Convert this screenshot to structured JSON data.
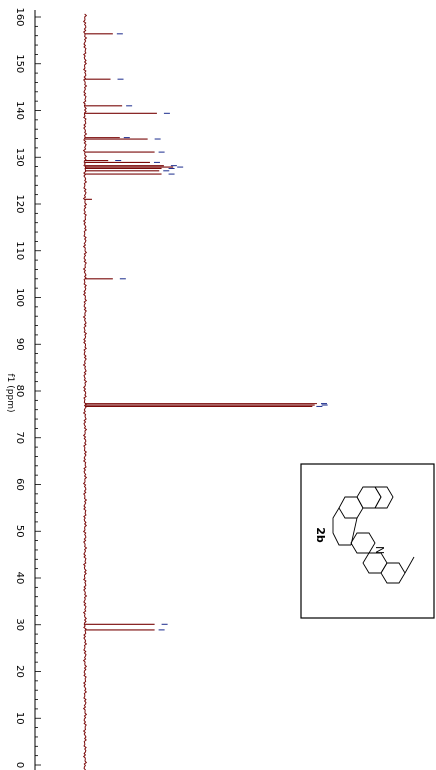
{
  "chart_data": {
    "type": "line",
    "title": "",
    "xlabel": "f1 (ppm)",
    "ylabel": "",
    "xlim": [
      161,
      -1
    ],
    "orientation": "rotated-90-clockwise",
    "ticks": [
      160,
      150,
      140,
      130,
      120,
      110,
      100,
      90,
      80,
      70,
      60,
      50,
      40,
      30,
      20,
      10,
      0
    ],
    "tick_labels": [
      "160",
      "150",
      "140",
      "130",
      "120",
      "110",
      "100",
      "90",
      "80",
      "70",
      "60",
      "50",
      "40",
      "30",
      "20",
      "10",
      "0"
    ],
    "peaks": [
      {
        "ppm": 156.4,
        "intensity": 0.12
      },
      {
        "ppm": 146.7,
        "intensity": 0.11
      },
      {
        "ppm": 141.0,
        "intensity": 0.16
      },
      {
        "ppm": 139.4,
        "intensity": 0.31
      },
      {
        "ppm": 134.2,
        "intensity": 0.15
      },
      {
        "ppm": 133.9,
        "intensity": 0.27
      },
      {
        "ppm": 131.1,
        "intensity": 0.3
      },
      {
        "ppm": 129.3,
        "intensity": 0.1
      },
      {
        "ppm": 128.9,
        "intensity": 0.28
      },
      {
        "ppm": 128.2,
        "intensity": 0.34
      },
      {
        "ppm": 127.9,
        "intensity": 0.38
      },
      {
        "ppm": 127.6,
        "intensity": 0.33
      },
      {
        "ppm": 127.1,
        "intensity": 0.32
      },
      {
        "ppm": 126.4,
        "intensity": 0.33
      },
      {
        "ppm": 121.0,
        "intensity": 0.03
      },
      {
        "ppm": 104.0,
        "intensity": 0.12
      },
      {
        "ppm": 77.3,
        "intensity": 1.0
      },
      {
        "ppm": 77.0,
        "intensity": 0.99
      },
      {
        "ppm": 76.7,
        "intensity": 0.98
      },
      {
        "ppm": 30.1,
        "intensity": 0.3
      },
      {
        "ppm": 28.9,
        "intensity": 0.3
      }
    ],
    "line_color": "#7a0a0a",
    "peak_label_color": "#1a2a8c"
  },
  "compound": {
    "label": "2b",
    "atom_label": "N"
  }
}
